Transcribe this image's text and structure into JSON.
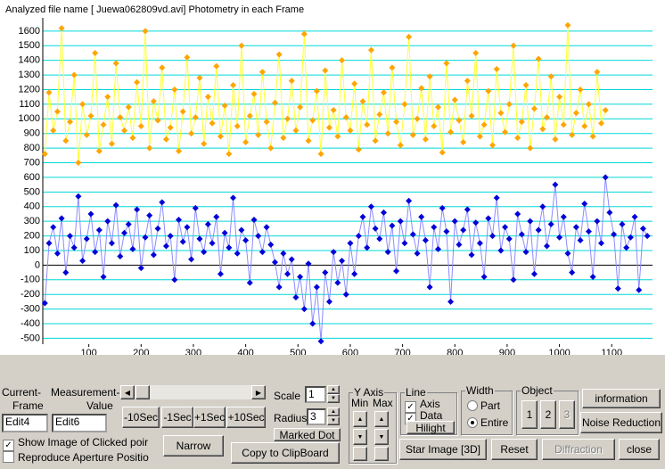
{
  "chart_data": {
    "type": "scatter-line",
    "title": "Analyzed file name [ Juewa062809vd.avi]   Photometry in each Frame",
    "x": [
      16,
      24,
      32,
      40,
      48,
      56,
      64,
      72,
      80,
      88,
      96,
      104,
      112,
      120,
      128,
      136,
      144,
      152,
      160,
      168,
      176,
      184,
      192,
      200,
      208,
      216,
      224,
      232,
      240,
      248,
      256,
      264,
      272,
      280,
      288,
      296,
      304,
      312,
      320,
      328,
      336,
      344,
      352,
      360,
      368,
      376,
      384,
      392,
      400,
      408,
      416,
      424,
      432,
      440,
      448,
      456,
      464,
      472,
      480,
      488,
      496,
      504,
      512,
      520,
      528,
      536,
      544,
      552,
      560,
      568,
      576,
      584,
      592,
      600,
      608,
      616,
      624,
      632,
      640,
      648,
      656,
      664,
      672,
      680,
      688,
      696,
      704,
      712,
      720,
      728,
      736,
      744,
      752,
      760,
      768,
      776,
      784,
      792,
      800,
      808,
      816,
      824,
      832,
      840,
      848,
      856,
      864,
      872,
      880,
      888,
      896,
      904,
      912,
      920,
      928,
      936,
      944,
      952,
      960,
      968,
      976,
      984,
      992,
      1000,
      1008,
      1016,
      1024,
      1032,
      1040,
      1048,
      1056,
      1064,
      1072,
      1080,
      1088,
      1096,
      1104,
      1112,
      1120,
      1128,
      1136,
      1144,
      1152,
      1160,
      1168
    ],
    "series": [
      {
        "color": "#ffa500",
        "line_color": "#ffff30",
        "values": [
          760,
          1180,
          920,
          1050,
          1620,
          850,
          980,
          1300,
          700,
          1100,
          890,
          1020,
          1450,
          780,
          960,
          1150,
          830,
          1380,
          1010,
          920,
          1080,
          870,
          1250,
          950,
          1600,
          800,
          1120,
          990,
          1350,
          860,
          940,
          1200,
          780,
          1050,
          1420,
          900,
          1010,
          1280,
          830,
          1150,
          970,
          1360,
          880,
          1090,
          760,
          1230,
          950,
          1500,
          840,
          1020,
          1170,
          890,
          1320,
          980,
          800,
          1110,
          1440,
          870,
          1000,
          1260,
          920,
          1080,
          1580,
          850,
          990,
          1190,
          760,
          1330,
          940,
          1060,
          880,
          1400,
          1010,
          920,
          1240,
          790,
          1120,
          960,
          1470,
          850,
          1030,
          1180,
          900,
          1350,
          980,
          820,
          1100,
          1560,
          890,
          1000,
          1210,
          860,
          1290,
          950,
          1080,
          770,
          1380,
          910,
          1130,
          990,
          840,
          1260,
          1020,
          1450,
          880,
          960,
          1190,
          820,
          1340,
          1040,
          910,
          1100,
          1500,
          870,
          980,
          1230,
          800,
          1070,
          1410,
          930,
          1010,
          1290,
          860,
          1150,
          960,
          1640,
          890,
          1040,
          1200,
          950,
          1100,
          880,
          1320,
          970,
          1060
        ]
      },
      {
        "color": "#0000d8",
        "line_color": "#8c8cff",
        "values": [
          -260,
          150,
          260,
          80,
          320,
          -50,
          200,
          120,
          470,
          30,
          180,
          350,
          90,
          240,
          -80,
          300,
          150,
          410,
          60,
          220,
          280,
          110,
          380,
          -20,
          190,
          340,
          70,
          250,
          430,
          130,
          200,
          -100,
          310,
          160,
          260,
          40,
          390,
          180,
          90,
          280,
          150,
          330,
          -60,
          220,
          120,
          460,
          80,
          240,
          170,
          -120,
          310,
          200,
          90,
          260,
          140,
          20,
          -150,
          80,
          -60,
          40,
          -220,
          -80,
          -300,
          10,
          -400,
          -150,
          -520,
          -50,
          -250,
          90,
          -120,
          30,
          -200,
          150,
          -60,
          200,
          330,
          120,
          400,
          250,
          180,
          360,
          90,
          270,
          -40,
          300,
          150,
          440,
          210,
          80,
          330,
          170,
          -150,
          260,
          110,
          390,
          230,
          -250,
          300,
          140,
          240,
          380,
          70,
          290,
          150,
          -80,
          320,
          200,
          460,
          100,
          260,
          180,
          -100,
          350,
          210,
          90,
          300,
          -60,
          240,
          400,
          130,
          280,
          550,
          190,
          330,
          80,
          -50,
          260,
          170,
          420,
          230,
          -80,
          300,
          150,
          600,
          360,
          210,
          -160,
          280,
          120,
          190,
          330,
          -170,
          250,
          200
        ]
      }
    ],
    "xlim": [
      12,
      1178
    ],
    "ylim": [
      -540,
      1660
    ],
    "xticks": [
      100,
      200,
      300,
      400,
      500,
      600,
      700,
      800,
      900,
      1000,
      1100
    ],
    "yticks": [
      -500,
      -400,
      -300,
      -200,
      -100,
      0,
      100,
      200,
      300,
      400,
      500,
      600,
      700,
      800,
      900,
      1000,
      1100,
      1200,
      1300,
      1400,
      1500,
      1600
    ],
    "grid": true,
    "grid_color": "#00d8d8"
  },
  "controls": {
    "current_frame_1": "Current-",
    "current_frame_2": "Frame",
    "measurement_1": "Measurement-",
    "measurement_2": "Value",
    "edit4": "Edit4",
    "edit6": "Edit6",
    "btn_m10": "-10Sec",
    "btn_m1": "-1Sec",
    "btn_p1": "+1Sec",
    "btn_p10": "+10Sec",
    "chk_show": "Show Image of Clicked poir",
    "chk_reproduce": "Reproduce Aperture Positio",
    "narrow": "Narrow",
    "copy": "Copy to ClipBoard",
    "scale": "Scale",
    "scale_value": "1",
    "radius": "Radius",
    "radius_value": "3",
    "marked_dot": "Marked Dot",
    "yaxis": "Y Axis",
    "min": "Min",
    "max": "Max",
    "line": "Line",
    "axis": "Axis",
    "data": "Data",
    "hilight": "Hilight",
    "width": "Width",
    "part": "Part",
    "entire": "Entire",
    "object": "Object",
    "obj1": "1",
    "obj2": "2",
    "obj3": "3",
    "information": "information",
    "noise": "Noise Reduction",
    "star": "Star Image [3D]",
    "reset": "Reset",
    "diffraction": "Diffraction",
    "close": "close"
  }
}
